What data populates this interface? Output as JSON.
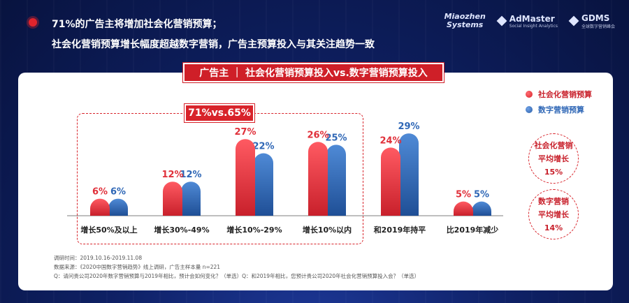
{
  "header": {
    "line1": "71%的广告主将增加社会化营销预算；",
    "line2": "社会化营销预算增长幅度超越数字营销，广告主预算投入与其关注趋势一致"
  },
  "logos": {
    "miaozhen": [
      "Miaozhen",
      "Systems"
    ],
    "admaster": "AdMaster",
    "admaster_sub": "Social Insight Analytics",
    "gdms": "GDMS",
    "gdms_sub": "全球数字营销峰会"
  },
  "banner": "广告主 ｜ 社会化营销预算投入vs.数字营销预算投入",
  "highlight_badge": "71%vs.65%",
  "legend": {
    "social": "社会化营销预算",
    "digital": "数字营销预算"
  },
  "averages": {
    "social": {
      "l1": "社会化营销",
      "l2": "平均增长",
      "value": "15%"
    },
    "digital": {
      "l1": "数字营销",
      "l2": "平均增长",
      "value": "14%"
    }
  },
  "footnotes": {
    "date": "调研时间：2019.10.16-2019.11.08",
    "source": "数据来源：《2020中国数字营销趋势》线上调研，广告主样本量 n=221",
    "question": "Q：请问贵公司2020年数字营销预算与2019年相比，预计会如何变化？（单选）Q：和2019年相比，您预计贵公司2020年社会化营销预算投入会？（单选）"
  },
  "colors": {
    "social": "#e0303a",
    "digital": "#2f67b6"
  },
  "chart_data": {
    "type": "bar",
    "categories": [
      "增长50%及以上",
      "增长30%-49%",
      "增长10%-29%",
      "增长10%以内",
      "和2019年持平",
      "比2019年减少"
    ],
    "series": [
      {
        "name": "社会化营销预算",
        "values": [
          6,
          12,
          27,
          26,
          24,
          5
        ]
      },
      {
        "name": "数字营销预算",
        "values": [
          6,
          12,
          22,
          25,
          29,
          5
        ]
      }
    ],
    "value_labels": [
      [
        "6%",
        "12%",
        "27%",
        "26%",
        "24%",
        "5%"
      ],
      [
        "6%",
        "12%",
        "22%",
        "25%",
        "29%",
        "5%"
      ]
    ],
    "ylim": [
      0,
      30
    ],
    "grid": false
  }
}
